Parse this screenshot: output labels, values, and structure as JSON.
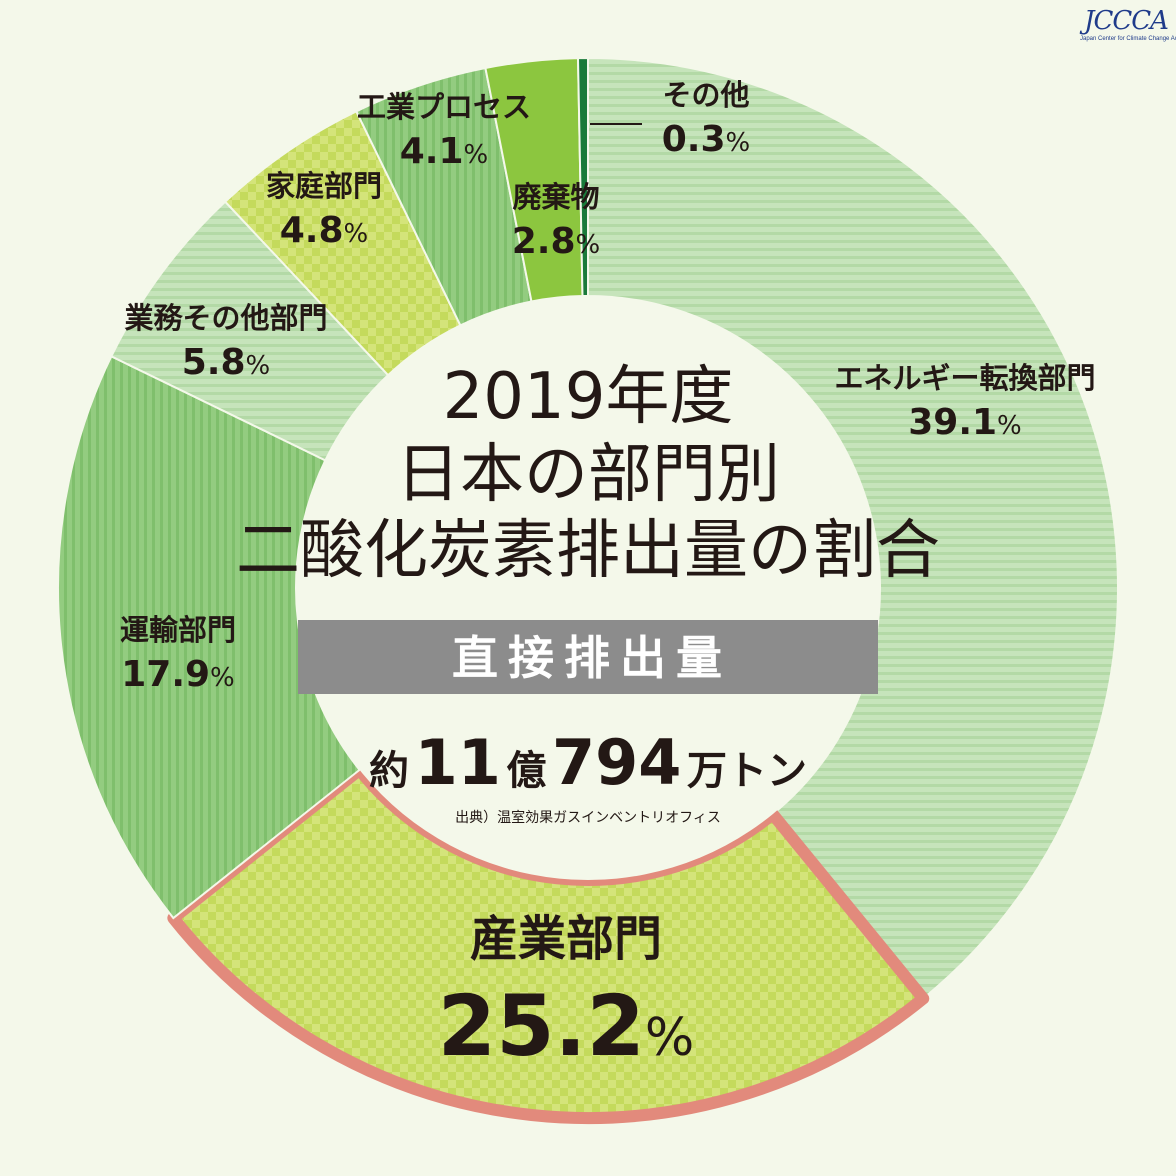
{
  "logo": {
    "main": "JCCCA",
    "sub": "Japan Center for Climate Change Actions"
  },
  "center": {
    "title_lines": [
      "2019年度",
      "日本の部門別",
      "二酸化炭素排出量の割合"
    ],
    "band": "直接排出量",
    "total": {
      "prefix": "約",
      "n1": "11",
      "u1": "億",
      "n2": "794",
      "u2": "万トン"
    },
    "source": "出典）温室効果ガスインベントリオフィス"
  },
  "colors": {
    "background": "#f4f8ea",
    "light_green": "#bfe0b4",
    "mid_green": "#8cc97a",
    "yellow_green": "#cfe06a",
    "bright_green": "#8cc63f",
    "dark_green": "#1a7a3a",
    "highlight_border": "#e28a7c",
    "band_gray": "#8c8c8c"
  },
  "chart_data": {
    "type": "pie",
    "title": "2019年度 日本の部門別 二酸化炭素排出量の割合",
    "subtitle": "直接排出量",
    "unit": "%",
    "slices": [
      {
        "label": "エネルギー転換部門",
        "value": 39.1,
        "display": "39.1",
        "color": "#bfe0b4",
        "pattern": "light-stripe"
      },
      {
        "label": "産業部門",
        "value": 25.2,
        "display": "25.2",
        "color": "#cfe06a",
        "pattern": "check",
        "highlighted": true
      },
      {
        "label": "運輸部門",
        "value": 17.9,
        "display": "17.9",
        "color": "#8cc97a",
        "pattern": "mid-stripe"
      },
      {
        "label": "業務その他部門",
        "value": 5.8,
        "display": "5.8",
        "color": "#bfe0b4",
        "pattern": "light-stripe"
      },
      {
        "label": "家庭部門",
        "value": 4.8,
        "display": "4.8",
        "color": "#cfe06a",
        "pattern": "check"
      },
      {
        "label": "工業プロセス",
        "value": 4.1,
        "display": "4.1",
        "color": "#8cc97a",
        "pattern": "mid-stripe"
      },
      {
        "label": "廃棄物",
        "value": 2.8,
        "display": "2.8",
        "color": "#8cc63f",
        "pattern": "solid"
      },
      {
        "label": "その他",
        "value": 0.3,
        "display": "0.3",
        "color": "#1a7a3a",
        "pattern": "solid"
      }
    ]
  }
}
